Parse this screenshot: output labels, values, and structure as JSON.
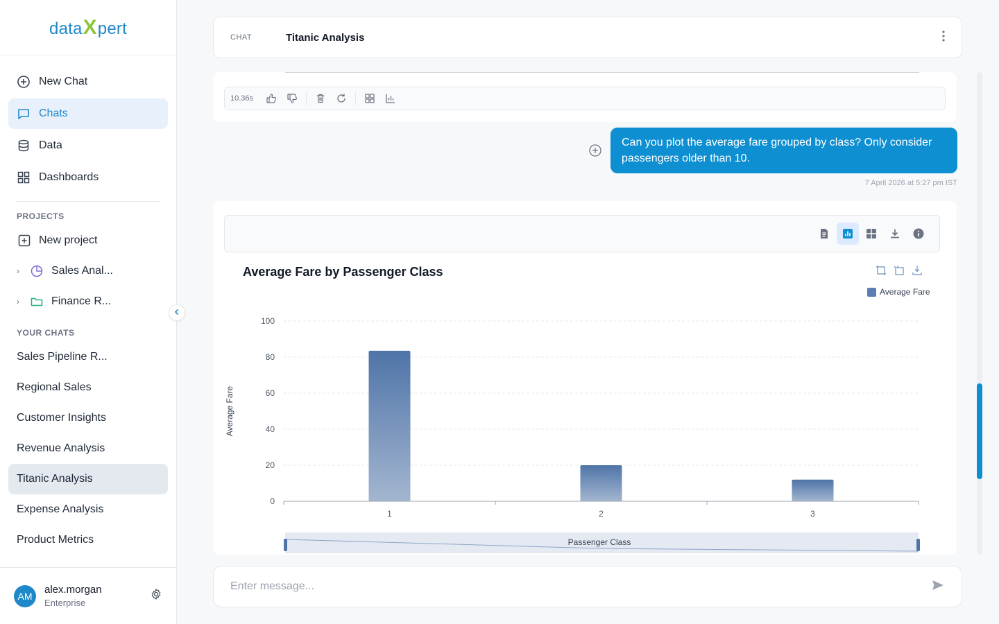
{
  "brand": {
    "logo_left": "data",
    "logo_x": "X",
    "logo_right": "pert"
  },
  "sidebar": {
    "nav": [
      {
        "label": "New Chat",
        "icon": "plus-circle-icon"
      },
      {
        "label": "Chats",
        "icon": "message-square-icon",
        "active": true
      },
      {
        "label": "Data",
        "icon": "database-icon"
      },
      {
        "label": "Dashboards",
        "icon": "dashboard-grid-icon"
      }
    ],
    "projects_label": "PROJECTS",
    "projects": [
      {
        "label": "New project",
        "icon": "plus-square-icon"
      },
      {
        "label": "Sales Anal...",
        "icon": "pie-chart-icon"
      },
      {
        "label": "Finance R...",
        "icon": "folder-icon"
      }
    ],
    "chats_label": "YOUR CHATS",
    "chats": [
      "Sales Pipeline R...",
      "Regional Sales",
      "Customer Insights",
      "Revenue Analysis",
      "Titanic Analysis",
      "Expense Analysis",
      "Product Metrics"
    ],
    "active_chat": "Titanic Analysis",
    "user": {
      "initials": "AM",
      "name": "alex.morgan",
      "plan": "Enterprise"
    }
  },
  "header": {
    "label": "CHAT",
    "title": "Titanic Analysis"
  },
  "previous_response": {
    "time": "10.36s"
  },
  "user_message": {
    "text": "Can you plot the average fare grouped by class? Only consider passengers older than 10.",
    "timestamp": "7 April 2026 at 5:27 pm IST"
  },
  "chart_data": {
    "type": "bar",
    "title": "Average Fare by Passenger Class",
    "xlabel": "Passenger Class",
    "ylabel": "Average Fare",
    "categories": [
      "1",
      "2",
      "3"
    ],
    "series": [
      {
        "name": "Average Fare",
        "values": [
          83.5,
          20.0,
          12.0
        ]
      }
    ],
    "ylim": [
      0,
      100
    ],
    "yticks": [
      0,
      20,
      40,
      60,
      80,
      100
    ],
    "grid": true,
    "legend": "top-right",
    "colors": {
      "bar_top": "#4f74a8",
      "bar_bottom": "#a3b6d0"
    }
  },
  "input": {
    "placeholder": "Enter message..."
  },
  "colors": {
    "accent": "#0e8fd1",
    "brand_green": "#8cc63f"
  }
}
